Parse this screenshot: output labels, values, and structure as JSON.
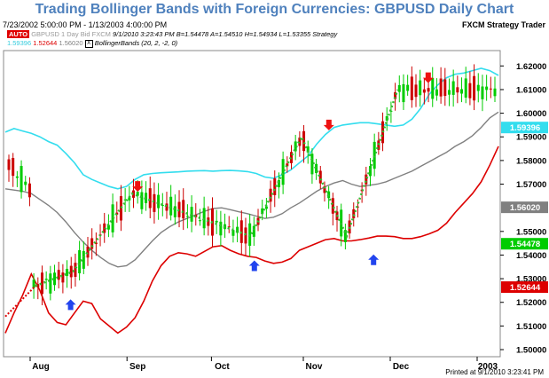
{
  "title": "Trading Bollinger Bands with Foreign Currencies: GBPUSD Daily Chart",
  "header": {
    "date_range": "7/23/2002 5:00:00 PM - 1/13/2003 4:00:00 PM",
    "brand": "FXCM Strategy Trader"
  },
  "legend": {
    "auto": "AUTO",
    "symbol": "GBPUSD",
    "timeframe": "1 Day",
    "side": "Bid",
    "source": "FXCM",
    "bar_info": "9/1/2010  3:23:43 PM  B=1.54478  A=1.54510  H=1.54934  L=1.53355  Strategy",
    "bb_values": [
      "1.59396",
      "1.52644",
      "1.56020"
    ],
    "bb_label": "BollingerBands  (20,  2,  -2,  0)",
    "bb_check": "X"
  },
  "footer": "Printed at 9/1/2010 3:23:41 PM",
  "colors": {
    "upper": "#33ddee",
    "lower": "#dd0000",
    "middle": "#808080",
    "up_bar": "#00cc00",
    "down_bar": "#cc0000",
    "zigzag": "#33bb33",
    "sell_arrow": "#ee1111",
    "buy_arrow": "#2244ee",
    "title": "#4f81bd"
  },
  "chart_data": {
    "type": "line",
    "x_labels": [
      "Aug",
      "Sep",
      "Oct",
      "Nov",
      "Dec",
      "2003"
    ],
    "y_ticks": [
      "1.62000",
      "1.61000",
      "1.60000",
      "1.59000",
      "1.58000",
      "1.57000",
      "1.55000",
      "1.54000",
      "1.53000",
      "1.52000",
      "1.51000",
      "1.50000"
    ],
    "ylim": [
      1.497,
      1.6265
    ],
    "price_tags": [
      {
        "label": "1.59396",
        "value": 1.59396,
        "color": "#33ddee"
      },
      {
        "label": "1.56020",
        "value": 1.5602,
        "color": "#808080"
      },
      {
        "label": "1.54478",
        "value": 1.54478,
        "color": "#00cc00"
      },
      {
        "label": "1.52644",
        "value": 1.52644,
        "color": "#dd0000"
      }
    ],
    "series": [
      {
        "name": "Upper",
        "values": [
          1.592,
          1.5935,
          1.5925,
          1.5915,
          1.59,
          1.588,
          1.5865,
          1.583,
          1.579,
          1.574,
          1.572,
          1.5705,
          1.569,
          1.568,
          1.569,
          1.572,
          1.574,
          1.5745,
          1.5748,
          1.575,
          1.5752,
          1.5755,
          1.5756,
          1.5757,
          1.5755,
          1.5757,
          1.5758,
          1.5756,
          1.5753,
          1.5745,
          1.573,
          1.5725,
          1.574,
          1.576,
          1.579,
          1.582,
          1.587,
          1.591,
          1.594,
          1.595,
          1.5955,
          1.596,
          1.596,
          1.5955,
          1.595,
          1.5945,
          1.595,
          1.5975,
          1.602,
          1.608,
          1.612,
          1.615,
          1.6165,
          1.617,
          1.618,
          1.619,
          1.618,
          1.616
        ]
      },
      {
        "name": "Middle",
        "values": [
          1.568,
          1.5675,
          1.567,
          1.566,
          1.5635,
          1.561,
          1.558,
          1.554,
          1.5495,
          1.5455,
          1.542,
          1.539,
          1.5365,
          1.535,
          1.5355,
          1.538,
          1.542,
          1.546,
          1.5495,
          1.552,
          1.554,
          1.5555,
          1.557,
          1.5585,
          1.5597,
          1.56,
          1.5592,
          1.5583,
          1.5575,
          1.5565,
          1.5555,
          1.556,
          1.5575,
          1.56,
          1.562,
          1.5645,
          1.567,
          1.569,
          1.5705,
          1.5715,
          1.57,
          1.569,
          1.5695,
          1.57,
          1.571,
          1.5725,
          1.574,
          1.5755,
          1.5775,
          1.5795,
          1.5815,
          1.5835,
          1.586,
          1.588,
          1.5905,
          1.594,
          1.598,
          1.6005
        ]
      },
      {
        "name": "Lower",
        "values": [
          1.507,
          1.5155,
          1.523,
          1.532,
          1.525,
          1.5155,
          1.5115,
          1.5105,
          1.5155,
          1.5205,
          1.5195,
          1.513,
          1.51,
          1.507,
          1.5095,
          1.5135,
          1.5205,
          1.529,
          1.5355,
          1.5395,
          1.541,
          1.5405,
          1.5395,
          1.5415,
          1.5435,
          1.544,
          1.542,
          1.5405,
          1.5395,
          1.539,
          1.5375,
          1.5365,
          1.537,
          1.5385,
          1.542,
          1.5435,
          1.545,
          1.5465,
          1.547,
          1.546,
          1.546,
          1.5465,
          1.5472,
          1.548,
          1.548,
          1.5478,
          1.547,
          1.547,
          1.5478,
          1.549,
          1.5505,
          1.5535,
          1.558,
          1.562,
          1.566,
          1.571,
          1.578,
          1.586
        ]
      }
    ],
    "zigzag": [
      [
        1.527,
        1.533,
        1.566,
        1.548,
        1.59,
        1.548,
        1.61
      ],
      [
        0.055,
        0.132,
        0.253,
        0.497,
        0.602,
        0.695,
        0.8
      ]
    ],
    "signals": [
      {
        "type": "sell",
        "price": 1.566
      },
      {
        "type": "buy",
        "price": 1.522
      },
      {
        "type": "buy",
        "price": 1.5385
      },
      {
        "type": "sell",
        "price": 1.592
      },
      {
        "type": "buy",
        "price": 1.541
      },
      {
        "type": "sell",
        "price": 1.612
      }
    ]
  }
}
